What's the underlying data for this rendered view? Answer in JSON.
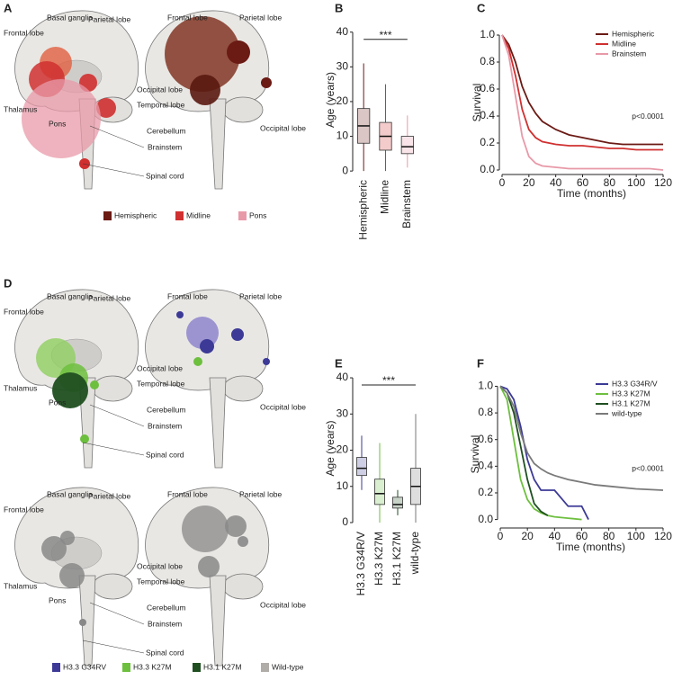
{
  "panels": [
    "A",
    "B",
    "C",
    "D",
    "E",
    "F"
  ],
  "diagrams": [
    {
      "left": [
        "Frontal lobe",
        "Basal ganglia",
        "Parietal lobe",
        "Occipital lobe",
        "Thalamus",
        "Pons",
        "Temporal lobe",
        "Cerebellum",
        "Brainstem",
        "Spinal cord"
      ],
      "right": [
        "Frontal lobe",
        "Parietal lobe",
        "Occipital lobe"
      ],
      "legend": [
        {
          "label": "Hemispheric",
          "color": "#6b1a14"
        },
        {
          "label": "Midline",
          "color": "#d03030"
        },
        {
          "label": "Pons",
          "color": "#e899a8"
        }
      ]
    },
    {
      "left": [
        "Frontal lobe",
        "Basal ganglia",
        "Parietal lobe",
        "Occipital lobe",
        "Thalamus",
        "Pons",
        "Temporal lobe",
        "Cerebellum",
        "Brainstem",
        "Spinal cord"
      ],
      "right": [
        "Frontal lobe",
        "Parietal lobe",
        "Occipital lobe"
      ]
    },
    {
      "left": [
        "Frontal lobe",
        "Basal ganglia",
        "Parietal lobe",
        "Occipital lobe",
        "Thalamus",
        "Pons",
        "Temporal lobe",
        "Cerebellum",
        "Brainstem",
        "Spinal cord"
      ],
      "right": [
        "Frontal lobe",
        "Parietal lobe",
        "Occipital lobe"
      ],
      "legend": [
        {
          "label": "H3.3 G34RV",
          "color": "#3c3a96"
        },
        {
          "label": "H3.3 K27M",
          "color": "#6dbf3e"
        },
        {
          "label": "H3.1 K27M",
          "color": "#1f4f20"
        },
        {
          "label": "Wild-type",
          "color": "#b0aca8"
        }
      ]
    }
  ],
  "chart_data": [
    {
      "type": "box",
      "ylabel": "Age (years)",
      "annotation": "***",
      "categories": [
        "Hemispheric",
        "Midline",
        "Brainstem"
      ],
      "colors": [
        "#6b1a14",
        "#d03030",
        "#e899a8"
      ],
      "boxes": [
        {
          "min": 0,
          "q1": 8,
          "median": 13,
          "q3": 18,
          "max": 31
        },
        {
          "min": 0,
          "q1": 6,
          "median": 10,
          "q3": 14,
          "max": 25
        },
        {
          "min": 1,
          "q1": 5,
          "median": 7,
          "q3": 10,
          "max": 16
        }
      ],
      "ylim": [
        -1,
        42
      ],
      "yticks": [
        0,
        10,
        20,
        30,
        40
      ]
    },
    {
      "type": "survival",
      "xlabel": "Time (months)",
      "ylabel": "Survival",
      "annotation": "p<0.0001",
      "x": [
        0,
        5,
        10,
        15,
        20,
        25,
        30,
        40,
        50,
        60,
        70,
        80,
        90,
        100,
        110,
        120
      ],
      "series": [
        {
          "name": "Hemispheric",
          "color": "#6b1a14",
          "values": [
            1,
            0.93,
            0.8,
            0.62,
            0.5,
            0.42,
            0.36,
            0.3,
            0.26,
            0.24,
            0.22,
            0.2,
            0.19,
            0.19,
            0.19,
            0.19
          ]
        },
        {
          "name": "Midline",
          "color": "#d03030",
          "values": [
            1,
            0.9,
            0.7,
            0.45,
            0.3,
            0.24,
            0.21,
            0.19,
            0.18,
            0.18,
            0.17,
            0.16,
            0.16,
            0.15,
            0.15,
            0.15
          ]
        },
        {
          "name": "Brainstem",
          "color": "#e899a8",
          "values": [
            1,
            0.85,
            0.55,
            0.25,
            0.1,
            0.05,
            0.03,
            0.02,
            0.01,
            0.01,
            0.01,
            0.01,
            0.01,
            0.01,
            0.01,
            0
          ]
        }
      ],
      "xlim": [
        -2,
        122
      ],
      "xticks": [
        0,
        20,
        40,
        60,
        80,
        100,
        120
      ],
      "ylim": [
        -0.02,
        1.02
      ],
      "yticks": [
        {
          "value": 0,
          "label": "0.0"
        },
        0.2,
        0.4,
        0.6,
        0.8,
        {
          "value": 1,
          "label": "1.0"
        }
      ]
    },
    {
      "type": "box",
      "ylabel": "Age (years)",
      "annotation": "***",
      "categories": [
        "H3.3 G34R/V",
        "H3.3 K27M",
        "H3.1 K27M",
        "wild-type"
      ],
      "colors": [
        "#3c3a96",
        "#6dbf3e",
        "#1f4f20",
        "#7a7a7a"
      ],
      "boxes": [
        {
          "min": 9,
          "q1": 13,
          "median": 15,
          "q3": 18,
          "max": 24
        },
        {
          "min": 0,
          "q1": 5,
          "median": 8,
          "q3": 12,
          "max": 22
        },
        {
          "min": 2,
          "q1": 4,
          "median": 5,
          "q3": 7,
          "max": 9
        },
        {
          "min": 0,
          "q1": 5,
          "median": 10,
          "q3": 15,
          "max": 30
        }
      ],
      "ylim": [
        -1,
        42
      ],
      "yticks": [
        0,
        10,
        20,
        30,
        40
      ]
    },
    {
      "type": "survival",
      "xlabel": "Time (months)",
      "ylabel": "Survival",
      "annotation": "p<0.0001",
      "x": [
        0,
        5,
        10,
        15,
        20,
        25,
        30,
        35,
        40,
        50,
        60,
        65,
        70,
        80,
        100,
        120
      ],
      "series": [
        {
          "name": "H3.3 G34R/V",
          "color": "#3c3a96",
          "values": [
            1,
            0.98,
            0.9,
            0.7,
            0.45,
            0.3,
            0.22,
            0.22,
            0.22,
            0.1,
            0.1,
            0,
            null,
            null,
            null,
            null
          ]
        },
        {
          "name": "H3.3 K27M",
          "color": "#6dbf3e",
          "values": [
            1,
            0.9,
            0.6,
            0.3,
            0.15,
            0.08,
            0.05,
            0.03,
            0.02,
            0.01,
            0,
            null,
            null,
            null,
            null,
            null
          ]
        },
        {
          "name": "H3.1 K27M",
          "color": "#1f4f20",
          "values": [
            1,
            0.95,
            0.8,
            0.55,
            0.3,
            0.12,
            0.06,
            0.03,
            null,
            null,
            null,
            null,
            null,
            null,
            null,
            null
          ]
        },
        {
          "name": "wild-type",
          "color": "#7a7a7a",
          "values": [
            1,
            0.95,
            0.85,
            0.65,
            0.5,
            0.42,
            0.38,
            0.35,
            0.33,
            0.3,
            0.28,
            0.27,
            0.26,
            0.25,
            0.23,
            0.22
          ]
        }
      ],
      "xlim": [
        -2,
        122
      ],
      "xticks": [
        0,
        20,
        40,
        60,
        80,
        100,
        120
      ],
      "ylim": [
        -0.05,
        1.03
      ],
      "yticks": [
        {
          "value": 0,
          "label": "0.0"
        },
        0.2,
        0.4,
        0.6,
        0.8,
        {
          "value": 1,
          "label": "1.0"
        }
      ]
    }
  ]
}
